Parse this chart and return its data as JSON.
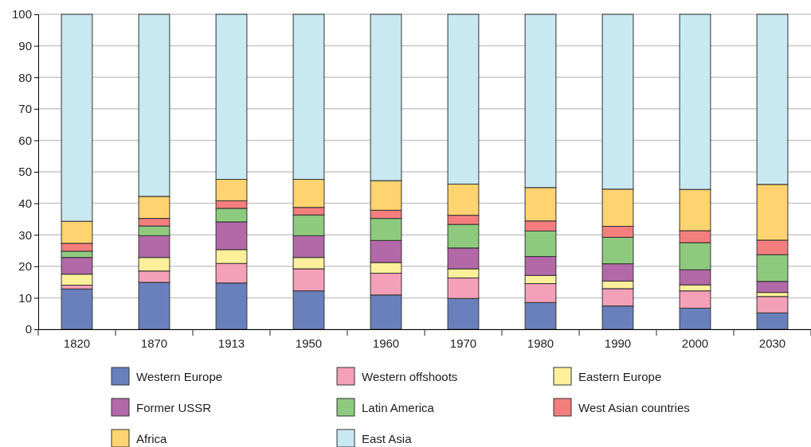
{
  "chart_data": {
    "type": "bar",
    "stacked": true,
    "categories": [
      "1820",
      "1870",
      "1913",
      "1950",
      "1960",
      "1970",
      "1980",
      "1990",
      "2000",
      "2030"
    ],
    "ylim": [
      0,
      100
    ],
    "yticks": [
      0,
      10,
      20,
      30,
      40,
      50,
      60,
      70,
      80,
      90,
      100
    ],
    "grid": "y",
    "legend": "bottom",
    "series": [
      {
        "name": "Western Europe",
        "color": "#6a80bd",
        "values": [
          12.8,
          14.9,
          14.7,
          12.2,
          10.9,
          9.8,
          8.5,
          7.4,
          6.7,
          5.2
        ]
      },
      {
        "name": "Western offshoots",
        "color": "#f4a0b8",
        "values": [
          1.2,
          3.6,
          6.2,
          7.0,
          6.9,
          6.5,
          6.0,
          5.5,
          5.5,
          5.2
        ]
      },
      {
        "name": "Eastern Europe",
        "color": "#fef09a",
        "values": [
          3.5,
          4.3,
          4.4,
          3.6,
          3.4,
          2.9,
          2.6,
          2.4,
          1.9,
          1.3
        ]
      },
      {
        "name": "Former USSR",
        "color": "#b368a8",
        "values": [
          5.3,
          6.9,
          8.8,
          6.9,
          7.0,
          6.6,
          6.0,
          5.5,
          4.8,
          3.5
        ]
      },
      {
        "name": "Latin America",
        "color": "#8dca7e",
        "values": [
          2.0,
          3.1,
          4.3,
          6.6,
          7.0,
          7.5,
          8.1,
          8.4,
          8.6,
          8.5
        ]
      },
      {
        "name": "West Asian countries",
        "color": "#f47e7e",
        "values": [
          2.5,
          2.4,
          2.4,
          2.4,
          2.6,
          2.9,
          3.2,
          3.5,
          3.8,
          4.6
        ]
      },
      {
        "name": "Africa",
        "color": "#fed370",
        "values": [
          7.0,
          7.0,
          6.8,
          8.9,
          9.4,
          9.9,
          10.6,
          11.8,
          13.1,
          17.7
        ]
      },
      {
        "name": "East Asia",
        "color": "#c8e8f2",
        "values": [
          65.7,
          57.8,
          52.4,
          52.4,
          52.8,
          53.9,
          55.0,
          55.5,
          55.6,
          54.0
        ]
      }
    ]
  }
}
